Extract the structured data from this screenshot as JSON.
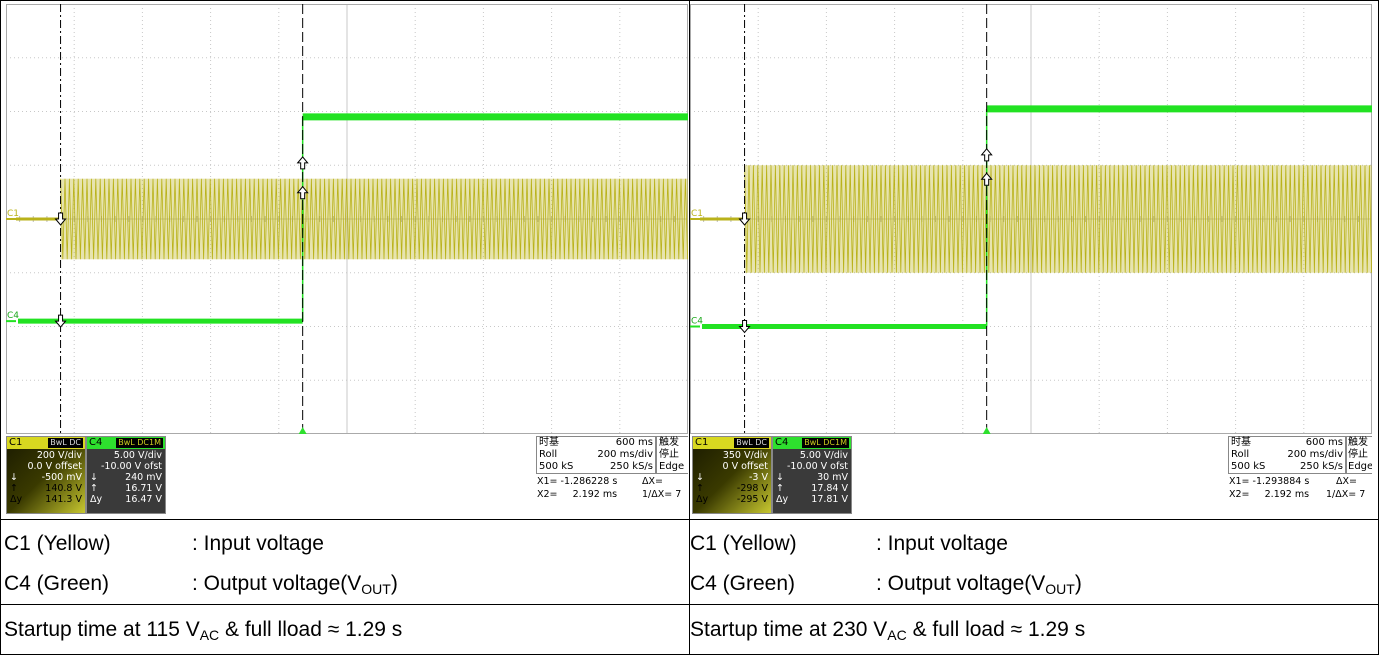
{
  "chart_data": [
    {
      "type": "line",
      "title": "",
      "xlabel": "",
      "ylabel": "",
      "grid": true,
      "x_divisions": 10,
      "y_divisions": 8,
      "series": [
        {
          "name": "C1",
          "color": "#b9b21a",
          "description_points": {
            "baseline_level_div": 0.0,
            "burst_start_div": 0.8,
            "amplitude_div": 0.75
          }
        },
        {
          "name": "C4",
          "color": "#22e222",
          "description_points": {
            "low_level_div": -1.9,
            "high_level_div": 1.9,
            "step_div": 4.35
          }
        }
      ],
      "markers": {
        "channel_labels": [
          "C1",
          "C4"
        ]
      },
      "ch1": {
        "label": "C1",
        "coupling_bw": "BwL",
        "coupling": "DC",
        "vdiv": "200 V/div",
        "offset": "0.0 V offset",
        "min_sym": "↓",
        "min": "-500 mV",
        "max_sym": "↑",
        "max": "140.8 V",
        "dy_sym": "Δy",
        "dy": "141.3 V"
      },
      "ch4": {
        "label": "C4",
        "coupling_bw": "BwL",
        "coupling": "DC1M",
        "vdiv": "5.00 V/div",
        "offset": "-10.00 V ofst",
        "min_sym": "↓",
        "min": "240 mV",
        "max_sym": "↑",
        "max": "16.71 V",
        "dy_sym": "Δy",
        "dy": "16.47 V"
      },
      "timebase": {
        "label": "时基",
        "value": "600 ms",
        "mode": "Roll",
        "tdiv": "200 ms/div",
        "samples": "500 kS",
        "rate": "250 kS/s"
      },
      "trigger": {
        "label": "触发",
        "state": "停止",
        "type": "Edge"
      },
      "cursors": {
        "x1_label": "X1=",
        "x1": "-1.286228 s",
        "dx_label": "ΔX=",
        "x2_label": "X2=",
        "x2": "2.192 ms",
        "inv_label": "1/ΔX=",
        "inv": "7"
      }
    },
    {
      "type": "line",
      "title": "",
      "xlabel": "",
      "ylabel": "",
      "grid": true,
      "x_divisions": 10,
      "y_divisions": 8,
      "series": [
        {
          "name": "C1",
          "color": "#b9b21a",
          "description_points": {
            "baseline_level_div": 0.0,
            "burst_start_div": 0.8,
            "amplitude_div": 1.0
          }
        },
        {
          "name": "C4",
          "color": "#22e222",
          "description_points": {
            "low_level_div": -2.0,
            "high_level_div": 2.05,
            "step_div": 4.35
          }
        }
      ],
      "markers": {
        "channel_labels": [
          "C1",
          "C4"
        ]
      },
      "ch1": {
        "label": "C1",
        "coupling_bw": "BwL",
        "coupling": "DC",
        "vdiv": "350 V/div",
        "offset": "0 V offset",
        "min_sym": "↓",
        "min": "-3 V",
        "max_sym": "↑",
        "max": "-298 V",
        "dy_sym": "Δy",
        "dy": "-295 V"
      },
      "ch4": {
        "label": "C4",
        "coupling_bw": "BwL",
        "coupling": "DC1M",
        "vdiv": "5.00 V/div",
        "offset": "-10.00 V ofst",
        "min_sym": "↓",
        "min": "30 mV",
        "max_sym": "↑",
        "max": "17.84 V",
        "dy_sym": "Δy",
        "dy": "17.81 V"
      },
      "timebase": {
        "label": "时基",
        "value": "600 ms",
        "mode": "Roll",
        "tdiv": "200 ms/div",
        "samples": "500 kS",
        "rate": "250 kS/s"
      },
      "trigger": {
        "label": "触发",
        "state": "停止",
        "type": "Edge"
      },
      "cursors": {
        "x1_label": "X1=",
        "x1": "-1.293884 s",
        "dx_label": "ΔX=",
        "x2_label": "X2=",
        "x2": "2.192 ms",
        "inv_label": "1/ΔX=",
        "inv": "7"
      }
    }
  ],
  "captions": {
    "left": {
      "c1_name": "C1 (Yellow)",
      "c1_desc": ": Input voltage",
      "c4_name": "C4 (Green)",
      "c4_desc_pre": ": Output voltage(V",
      "c4_desc_sub": "OUT",
      "c4_desc_post": ")",
      "startup_pre": "Startup time at 115 V",
      "startup_sub": "AC",
      "startup_post": " & full lload ≈ 1.29 s"
    },
    "right": {
      "c1_name": "C1 (Yellow)",
      "c1_desc": ": Input voltage",
      "c4_name": "C4 (Green)",
      "c4_desc_pre": ": Output voltage(V",
      "c4_desc_sub": "OUT",
      "c4_desc_post": ")",
      "startup_pre": "Startup time at 230 V",
      "startup_sub": "AC",
      "startup_post": " & full load ≈ 1.29 s"
    }
  }
}
